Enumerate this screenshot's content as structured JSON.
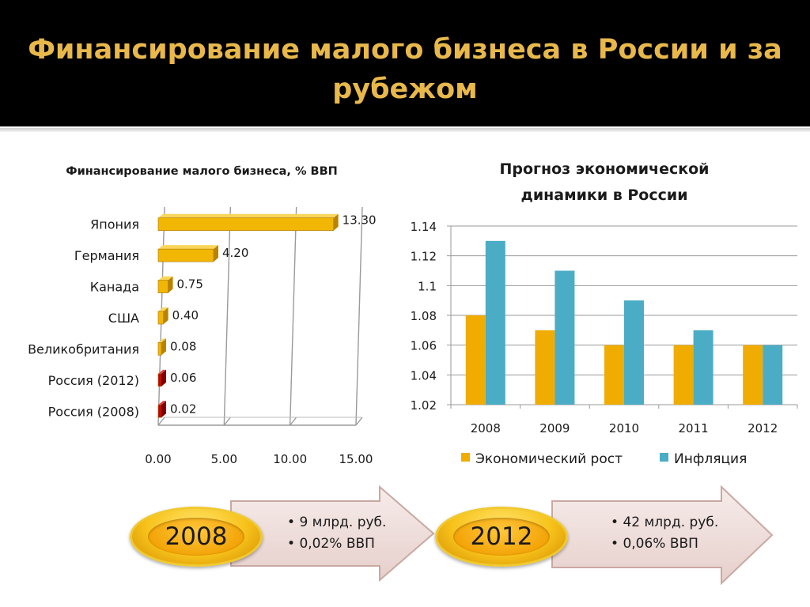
{
  "slide": {
    "title": "Финансирование малого бизнеса в России и за рубежом"
  },
  "colors": {
    "title": "#e8b84b",
    "bar_main": "#f2b705",
    "bar_russia": "#c00000",
    "econ_growth": "#f0ac00",
    "inflation": "#4bacc6"
  },
  "chart_data": [
    {
      "type": "bar",
      "orientation": "horizontal",
      "title": "Финансирование малого бизнеса, % ВВП",
      "categories": [
        "Япония",
        "Германия",
        "Канада",
        "США",
        "Великобритания",
        "Россия (2012)",
        "Россия (2008)"
      ],
      "values": [
        13.3,
        4.2,
        0.75,
        0.4,
        0.08,
        0.06,
        0.02
      ],
      "value_labels": [
        "13.30",
        "4.20",
        "0.75",
        "0.40",
        "0.08",
        "0.06",
        "0.02"
      ],
      "xlim": [
        0,
        15
      ],
      "x_ticks": [
        "0.00",
        "5.00",
        "10.00",
        "15.00"
      ],
      "grid": true,
      "legend": "none"
    },
    {
      "type": "bar",
      "title": "Прогноз экономической динамики в России",
      "categories": [
        "2008",
        "2009",
        "2010",
        "2011",
        "2012"
      ],
      "series": [
        {
          "name": "Экономический рост",
          "values": [
            1.08,
            1.07,
            1.06,
            1.06,
            1.06
          ]
        },
        {
          "name": "Инфляция",
          "values": [
            1.13,
            1.11,
            1.09,
            1.07,
            1.06
          ]
        }
      ],
      "ylim": [
        1.02,
        1.14
      ],
      "y_ticks": [
        "1.02",
        "1.04",
        "1.06",
        "1.08",
        "1.1",
        "1.12",
        "1.14"
      ],
      "grid": true,
      "legend": "bottom"
    }
  ],
  "callouts": [
    {
      "year": "2008",
      "bullets": [
        "9 млрд. руб.",
        "0,02% ВВП"
      ]
    },
    {
      "year": "2012",
      "bullets": [
        "42 млрд. руб.",
        "0,06% ВВП"
      ]
    }
  ]
}
